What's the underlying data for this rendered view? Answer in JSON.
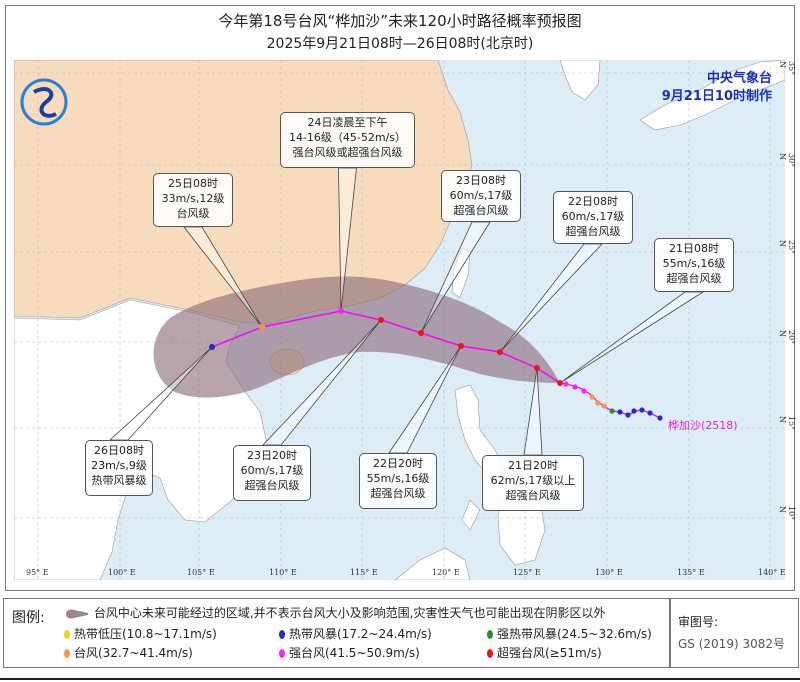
{
  "title": "今年第18号台风“桦加沙”未来120小时路径概率预报图",
  "subtitle": "2025年9月21日08时—26日08时(北京时)",
  "agency": {
    "name": "中央气象台",
    "issued": "9月21日10时制作"
  },
  "typhoon_label": "桦加沙(2518)",
  "colors": {
    "sea": "#dcedf7",
    "china_land": "#f6dcbc",
    "cone": "#8a6a78",
    "track": "#ff00ff",
    "td": "#f2d21a",
    "ts": "#2030c0",
    "sts": "#2e8b2e",
    "ty": "#f39a4a",
    "sty": "#ff22ff",
    "super_ty": "#e81818"
  },
  "axes": {
    "lon_labels": [
      "95° E",
      "100° E",
      "105° E",
      "110° E",
      "115° E",
      "120° E",
      "125° E",
      "130° E",
      "135° E",
      "140° E"
    ],
    "lat_labels": [
      "35° N",
      "30° N",
      "25° N",
      "20° N",
      "15° N",
      "10° N"
    ]
  },
  "forecast_points": [
    {
      "time": "21日08时",
      "wind": "55m/s,16级",
      "category": "超强台风级",
      "lon": 126.9,
      "lat": 18.7,
      "level": "super_ty"
    },
    {
      "time": "21日20时",
      "wind": "62m/s,17级以上",
      "category": "超强台风级",
      "lon": 125.5,
      "lat": 19.5,
      "level": "super_ty"
    },
    {
      "time": "22日08时",
      "wind": "60m/s,17级",
      "category": "超强台风级",
      "lon": 123.3,
      "lat": 20.5,
      "level": "super_ty"
    },
    {
      "time": "22日20时",
      "wind": "55m/s,16级",
      "category": "超强台风级",
      "lon": 120.9,
      "lat": 20.8,
      "level": "super_ty"
    },
    {
      "time": "23日08时",
      "wind": "60m/s,17级",
      "category": "超强台风级",
      "lon": 118.5,
      "lat": 21.5,
      "level": "super_ty"
    },
    {
      "time": "23日20时",
      "wind": "60m/s,17级",
      "category": "超强台风级",
      "lon": 116.0,
      "lat": 22.2,
      "level": "super_ty"
    },
    {
      "time": "24日凌晨至下午",
      "wind": "14-16级（45-52m/s）",
      "category": "强台风级或超强台风级",
      "lon": 113.6,
      "lat": 22.8,
      "level": "sty"
    },
    {
      "time": "25日08时",
      "wind": "33m/s,12级",
      "category": "台风级",
      "lon": 108.8,
      "lat": 21.8,
      "level": "ty"
    },
    {
      "time": "26日08时",
      "wind": "23m/s,9级",
      "category": "热带风暴级",
      "lon": 105.8,
      "lat": 20.6,
      "level": "ts"
    }
  ],
  "legend": {
    "title": "图例:",
    "cone_text": "台风中心未来可能经过的区域,并不表示台风大小及影响范围,灾害性天气也可能出现在阴影区以外",
    "items": [
      {
        "label": "热带低压(10.8~17.1m/s)",
        "color": "#f2d21a"
      },
      {
        "label": "热带风暴(17.2~24.4m/s)",
        "color": "#2030c0"
      },
      {
        "label": "强热带风暴(24.5~32.6m/s)",
        "color": "#2e8b2e"
      },
      {
        "label": "台风(32.7~41.4m/s)",
        "color": "#f39a4a"
      },
      {
        "label": "强台风(41.5~50.9m/s)",
        "color": "#ff22ff"
      },
      {
        "label": "超强台风(≥51m/s)",
        "color": "#e81818"
      }
    ],
    "review_label": "审图号:",
    "review_number": "GS (2019) 3082号"
  }
}
